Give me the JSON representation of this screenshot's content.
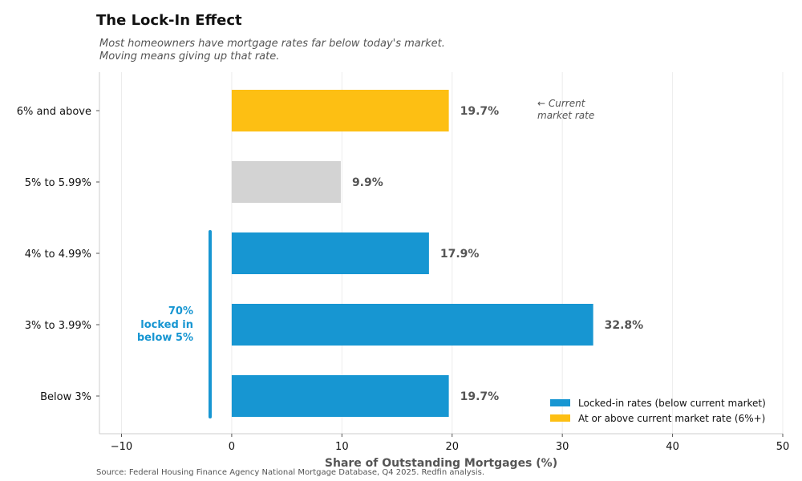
{
  "chart_data": {
    "type": "bar",
    "orientation": "horizontal",
    "title": "The Lock-In Effect",
    "subtitle_lines": [
      "Most homeowners have mortgage rates far below today's market.",
      "Moving means giving up that rate."
    ],
    "categories": [
      "6% and above",
      "5% to 5.99%",
      "4% to 4.99%",
      "3% to 3.99%",
      "Below 3%"
    ],
    "values": [
      19.7,
      9.9,
      17.9,
      32.8,
      19.7
    ],
    "value_labels": [
      "19.7%",
      "9.9%",
      "17.9%",
      "32.8%",
      "19.7%"
    ],
    "bar_groups": [
      "market",
      "neutral",
      "locked",
      "locked",
      "locked"
    ],
    "colors": {
      "locked": "#1796d2",
      "market": "#fdbf13",
      "neutral": "#d3d3d3",
      "axis_label": "#555555"
    },
    "xlabel": "Share of Outstanding Mortgages (%)",
    "xlim": [
      -12,
      50
    ],
    "xticks": [
      -10,
      0,
      10,
      20,
      30,
      40,
      50
    ],
    "xtick_labels": [
      "−10",
      "0",
      "10",
      "20",
      "30",
      "40",
      "50"
    ],
    "grid": true,
    "annotations": {
      "current_market": [
        "← Current",
        "market rate"
      ],
      "locked_in": [
        "70%",
        "locked in",
        "below 5%"
      ]
    },
    "legend": {
      "position": "bottom-right",
      "entries": [
        {
          "label": "Locked-in rates (below current market)",
          "group": "locked"
        },
        {
          "label": "At or above current market rate (6%+)",
          "group": "market"
        }
      ]
    }
  },
  "source": "Source: Federal Housing Finance Agency National Mortgage Database, Q4 2025. Redfin analysis."
}
